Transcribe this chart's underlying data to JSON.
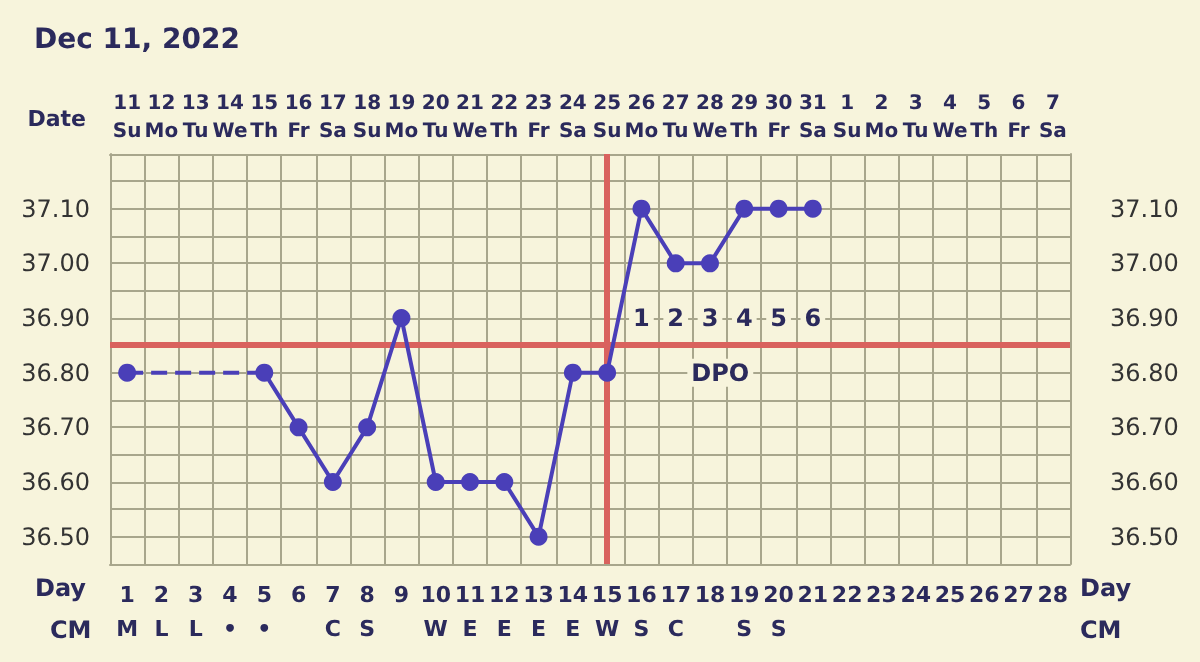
{
  "chart_data": {
    "type": "line",
    "title": "Dec 11, 2022",
    "x2label": "Date",
    "xlabel": "Day",
    "xlim": [
      0.5,
      28.5
    ],
    "xticks": [
      {
        "value": 0.5,
        "label": null
      },
      {
        "value": 1,
        "label": "1\nM"
      },
      {
        "value": 1.5,
        "label": null
      },
      {
        "value": 2,
        "label": "2\nL"
      },
      {
        "value": 2.5,
        "label": null
      },
      {
        "value": 3,
        "label": "3\nL"
      },
      {
        "value": 3.5,
        "label": null
      },
      {
        "value": 4,
        "label": "4\n•"
      },
      {
        "value": 4.5,
        "label": null
      },
      {
        "value": 5,
        "label": "5\n•"
      },
      {
        "value": 5.5,
        "label": null
      },
      {
        "value": 6,
        "label": "6"
      },
      {
        "value": 6.5,
        "label": null
      },
      {
        "value": 7,
        "label": "7\nC"
      },
      {
        "value": 7.5,
        "label": null
      },
      {
        "value": 8,
        "label": "8\nS"
      },
      {
        "value": 8.5,
        "label": null
      },
      {
        "value": 9,
        "label": "9"
      },
      {
        "value": 9.5,
        "label": null
      },
      {
        "value": 10,
        "label": "10\nW"
      },
      {
        "value": 10.5,
        "label": null
      },
      {
        "value": 11,
        "label": "11\nE"
      },
      {
        "value": 11.5,
        "label": null
      },
      {
        "value": 12,
        "label": "12\nE"
      },
      {
        "value": 12.5,
        "label": null
      },
      {
        "value": 13,
        "label": "13\nE"
      },
      {
        "value": 13.5,
        "label": null
      },
      {
        "value": 14,
        "label": "14\nE"
      },
      {
        "value": 14.5,
        "label": null
      },
      {
        "value": 15,
        "label": "15\nW"
      },
      {
        "value": 15.5,
        "label": null
      },
      {
        "value": 16,
        "label": "16\nS"
      },
      {
        "value": 16.5,
        "label": null
      },
      {
        "value": 17,
        "label": "17\nC"
      },
      {
        "value": 17.5,
        "label": null
      },
      {
        "value": 18,
        "label": "18"
      },
      {
        "value": 18.5,
        "label": null
      },
      {
        "value": 19,
        "label": "19\nS"
      },
      {
        "value": 19.5,
        "label": null
      },
      {
        "value": 20,
        "label": "20\nS"
      },
      {
        "value": 20.5,
        "label": null
      },
      {
        "value": 21,
        "label": "21"
      },
      {
        "value": 21.5,
        "label": null
      },
      {
        "value": 22,
        "label": "22"
      },
      {
        "value": 22.5,
        "label": null
      },
      {
        "value": 23,
        "label": "23"
      },
      {
        "value": 23.5,
        "label": null
      },
      {
        "value": 24,
        "label": "24"
      },
      {
        "value": 24.5,
        "label": null
      },
      {
        "value": 25,
        "label": "25"
      },
      {
        "value": 25.5,
        "label": null
      },
      {
        "value": 26,
        "label": "26"
      },
      {
        "value": 26.5,
        "label": null
      },
      {
        "value": 27,
        "label": "27"
      },
      {
        "value": 27.5,
        "label": null
      },
      {
        "value": 28,
        "label": "28"
      },
      {
        "value": 28.5,
        "label": null
      }
    ],
    "x2lim": [
      "2022-12-10T12:00",
      "2023-01-07T12:00"
    ],
    "x2ticks": [
      {
        "value": "2022-12-11",
        "label": "11\nSu"
      },
      {
        "value": "2022-12-12",
        "label": "12\nMo"
      },
      {
        "value": "2022-12-13",
        "label": "13\nTu"
      },
      {
        "value": "2022-12-14",
        "label": "14\nWe"
      },
      {
        "value": "2022-12-15",
        "label": "15\nTh"
      },
      {
        "value": "2022-12-16",
        "label": "16\nFr"
      },
      {
        "value": "2022-12-17",
        "label": "17\nSa"
      },
      {
        "value": "2022-12-18",
        "label": "18\nSu"
      },
      {
        "value": "2022-12-19",
        "label": "19\nMo"
      },
      {
        "value": "2022-12-20",
        "label": "20\nTu"
      },
      {
        "value": "2022-12-21",
        "label": "21\nWe"
      },
      {
        "value": "2022-12-22",
        "label": "22\nTh"
      },
      {
        "value": "2022-12-23",
        "label": "23\nFr"
      },
      {
        "value": "2022-12-24",
        "label": "24\nSa"
      },
      {
        "value": "2022-12-25",
        "label": "25\nSu"
      },
      {
        "value": "2022-12-26",
        "label": "26\nMo"
      },
      {
        "value": "2022-12-27",
        "label": "27\nTu"
      },
      {
        "value": "2022-12-28",
        "label": "28\nWe"
      },
      {
        "value": "2022-12-29",
        "label": "29\nTh"
      },
      {
        "value": "2022-12-30",
        "label": "30\nFr"
      },
      {
        "value": "2022-12-31",
        "label": "31\nSa"
      },
      {
        "value": "2023-01-01",
        "label": "1\nSu"
      },
      {
        "value": "2023-01-02",
        "label": "2\nMo"
      },
      {
        "value": "2023-01-03",
        "label": "3\nTu"
      },
      {
        "value": "2023-01-04",
        "label": "4\nWe"
      },
      {
        "value": "2023-01-05",
        "label": "5\nTh"
      },
      {
        "value": "2023-01-06",
        "label": "6\nFr"
      },
      {
        "value": "2023-01-07",
        "label": "7\nSa"
      }
    ],
    "ylim": [
      36.45,
      37.2
    ],
    "yticks": [
      {
        "value": 36.45,
        "label": null
      },
      {
        "value": 36.5,
        "label": "36.50"
      },
      {
        "value": 36.55,
        "label": null
      },
      {
        "value": 36.6,
        "label": "36.60"
      },
      {
        "value": 36.65,
        "label": null
      },
      {
        "value": 36.7,
        "label": "36.70"
      },
      {
        "value": 36.75,
        "label": null
      },
      {
        "value": 36.8,
        "label": "36.80"
      },
      {
        "value": 36.9,
        "label": "36.90"
      },
      {
        "value": 36.95,
        "label": null
      },
      {
        "value": 37,
        "label": "37.00"
      },
      {
        "value": 37.05,
        "label": null
      },
      {
        "value": 37.1,
        "label": "37.10"
      },
      {
        "value": 37.15,
        "label": null
      },
      {
        "value": 37.2,
        "label": null
      }
    ],
    "y2lim": [
      36.45,
      37.2
    ],
    "y2ticks": [
      {
        "value": 36.45,
        "label": null
      },
      {
        "value": 36.5,
        "label": "36.50"
      },
      {
        "value": 36.55,
        "label": null
      },
      {
        "value": 36.6,
        "label": "36.60"
      },
      {
        "value": 36.65,
        "label": null
      },
      {
        "value": 36.7,
        "label": "36.70"
      },
      {
        "value": 36.75,
        "label": null
      },
      {
        "value": 36.8,
        "label": "36.80"
      },
      {
        "value": 36.9,
        "label": "36.90"
      },
      {
        "value": 36.95,
        "label": null
      },
      {
        "value": 37,
        "label": "37.00"
      },
      {
        "value": 37.05,
        "label": null
      },
      {
        "value": 37.1,
        "label": "37.10"
      },
      {
        "value": 37.15,
        "label": null
      },
      {
        "value": 37.2,
        "label": null
      }
    ],
    "grid": true,
    "marker": "circle",
    "series": [
      {
        "color": "#4a3fb8",
        "line_style": "solid",
        "x": [
          1,
          2,
          3,
          4,
          5,
          6,
          7,
          8,
          9,
          10,
          11,
          12,
          13,
          14,
          15,
          16,
          17,
          18,
          19,
          20,
          21
        ],
        "values": [
          36.8,
          null,
          null,
          null,
          36.8,
          36.7,
          36.6,
          36.7,
          36.9,
          36.6,
          36.6,
          36.6,
          36.5,
          36.8,
          36.8,
          37.1,
          37.0,
          37.0,
          37.1,
          37.1,
          37.1
        ]
      }
    ],
    "ref_lines": [
      {
        "axis": "y",
        "value": 36.85,
        "color": "#d9625e"
      },
      {
        "axis": "x",
        "value": 15,
        "color": "#d9625e"
      }
    ],
    "annotations": [
      "CM",
      "Day",
      "CM",
      {
        "text": "1",
        "x": 16,
        "y": 36.9
      },
      {
        "text": "2",
        "x": 17,
        "y": 36.9
      },
      {
        "text": "3",
        "x": 18,
        "y": 36.9
      },
      {
        "text": "4",
        "x": 19,
        "y": 36.9
      },
      {
        "text": "5",
        "x": 20,
        "y": 36.9
      },
      {
        "text": "6",
        "x": 21,
        "y": 36.9
      },
      {
        "text": "DPO",
        "x": 18.3,
        "y": 36.8
      }
    ]
  }
}
